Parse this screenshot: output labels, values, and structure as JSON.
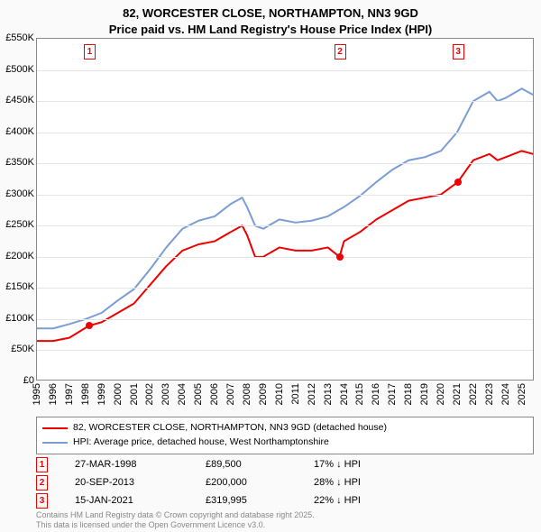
{
  "title_line1": "82, WORCESTER CLOSE, NORTHAMPTON, NN3 9GD",
  "title_line2": "Price paid vs. HM Land Registry's House Price Index (HPI)",
  "chart": {
    "type": "line",
    "background_color": "#ffffff",
    "grid_color": "#e4e4e4",
    "border_color": "#888888",
    "xlim": [
      1995,
      2025.8
    ],
    "ylim": [
      0,
      550
    ],
    "y_ticks": [
      0,
      50,
      100,
      150,
      200,
      250,
      300,
      350,
      400,
      450,
      500,
      550
    ],
    "y_tick_labels": [
      "£0",
      "£50K",
      "£100K",
      "£150K",
      "£200K",
      "£250K",
      "£300K",
      "£350K",
      "£400K",
      "£450K",
      "£500K",
      "£550K"
    ],
    "x_ticks": [
      1995,
      1996,
      1997,
      1998,
      1999,
      2000,
      2001,
      2002,
      2003,
      2004,
      2005,
      2006,
      2007,
      2008,
      2009,
      2010,
      2011,
      2012,
      2013,
      2014,
      2015,
      2016,
      2017,
      2018,
      2019,
      2020,
      2021,
      2022,
      2023,
      2024,
      2025
    ],
    "series": [
      {
        "name": "price_paid",
        "label": "82, WORCESTER CLOSE, NORTHAMPTON, NN3 9GD (detached house)",
        "color": "#ef0000",
        "line_width": 2,
        "data": [
          [
            1995,
            65
          ],
          [
            1996,
            65
          ],
          [
            1997,
            70
          ],
          [
            1998.23,
            89.5
          ],
          [
            1999,
            95
          ],
          [
            2000,
            110
          ],
          [
            2001,
            125
          ],
          [
            2002,
            155
          ],
          [
            2003,
            185
          ],
          [
            2004,
            210
          ],
          [
            2005,
            220
          ],
          [
            2006,
            225
          ],
          [
            2007,
            240
          ],
          [
            2007.7,
            250
          ],
          [
            2008,
            235
          ],
          [
            2008.5,
            200
          ],
          [
            2009,
            200
          ],
          [
            2010,
            215
          ],
          [
            2011,
            210
          ],
          [
            2012,
            210
          ],
          [
            2013,
            215
          ],
          [
            2013.72,
            200
          ],
          [
            2014,
            225
          ],
          [
            2015,
            240
          ],
          [
            2016,
            260
          ],
          [
            2017,
            275
          ],
          [
            2018,
            290
          ],
          [
            2019,
            295
          ],
          [
            2020,
            300
          ],
          [
            2021.04,
            319.995
          ],
          [
            2022,
            355
          ],
          [
            2023,
            365
          ],
          [
            2023.5,
            355
          ],
          [
            2024,
            360
          ],
          [
            2025,
            370
          ],
          [
            2025.7,
            365
          ]
        ],
        "sale_points": [
          {
            "x": 1998.23,
            "y": 89.5
          },
          {
            "x": 2013.72,
            "y": 200
          },
          {
            "x": 2021.04,
            "y": 319.995
          }
        ]
      },
      {
        "name": "hpi",
        "label": "HPI: Average price, detached house, West Northamptonshire",
        "color": "#7a9dd4",
        "line_width": 2,
        "data": [
          [
            1995,
            85
          ],
          [
            1996,
            85
          ],
          [
            1997,
            92
          ],
          [
            1998,
            100
          ],
          [
            1999,
            110
          ],
          [
            2000,
            130
          ],
          [
            2001,
            148
          ],
          [
            2002,
            180
          ],
          [
            2003,
            215
          ],
          [
            2004,
            245
          ],
          [
            2005,
            258
          ],
          [
            2006,
            265
          ],
          [
            2007,
            285
          ],
          [
            2007.7,
            295
          ],
          [
            2008,
            280
          ],
          [
            2008.5,
            250
          ],
          [
            2009,
            245
          ],
          [
            2010,
            260
          ],
          [
            2011,
            255
          ],
          [
            2012,
            258
          ],
          [
            2013,
            265
          ],
          [
            2014,
            280
          ],
          [
            2015,
            298
          ],
          [
            2016,
            320
          ],
          [
            2017,
            340
          ],
          [
            2018,
            355
          ],
          [
            2019,
            360
          ],
          [
            2020,
            370
          ],
          [
            2021,
            400
          ],
          [
            2022,
            450
          ],
          [
            2023,
            465
          ],
          [
            2023.5,
            450
          ],
          [
            2024,
            455
          ],
          [
            2025,
            470
          ],
          [
            2025.7,
            460
          ]
        ]
      }
    ],
    "markers": [
      {
        "num": "1",
        "x": 1998.23
      },
      {
        "num": "2",
        "x": 2013.72
      },
      {
        "num": "3",
        "x": 2021.04
      }
    ]
  },
  "legend": {
    "items": [
      {
        "color": "#ef0000",
        "label": "82, WORCESTER CLOSE, NORTHAMPTON, NN3 9GD (detached house)"
      },
      {
        "color": "#7a9dd4",
        "label": "HPI: Average price, detached house, West Northamptonshire"
      }
    ]
  },
  "sales": [
    {
      "num": "1",
      "date": "27-MAR-1998",
      "price": "£89,500",
      "hpi": "17% ↓ HPI"
    },
    {
      "num": "2",
      "date": "20-SEP-2013",
      "price": "£200,000",
      "hpi": "28% ↓ HPI"
    },
    {
      "num": "3",
      "date": "15-JAN-2021",
      "price": "£319,995",
      "hpi": "22% ↓ HPI"
    }
  ],
  "footer_line1": "Contains HM Land Registry data © Crown copyright and database right 2025.",
  "footer_line2": "This data is licensed under the Open Government Licence v3.0."
}
